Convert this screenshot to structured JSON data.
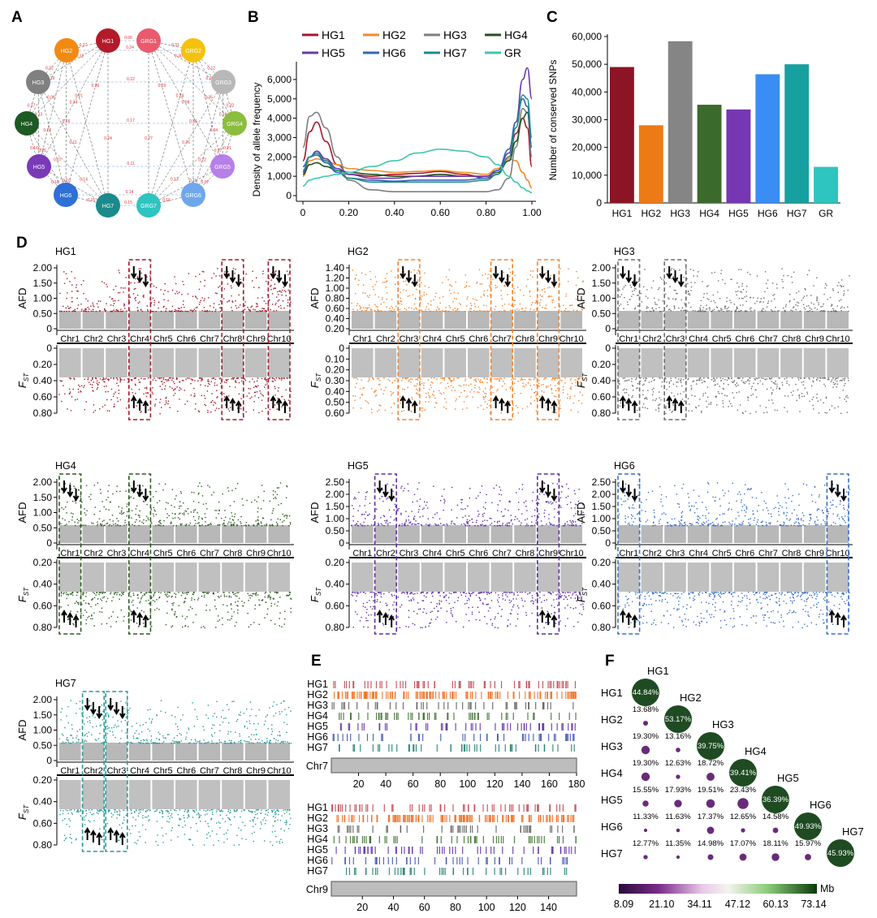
{
  "panel_labels": [
    "A",
    "B",
    "C",
    "D",
    "E",
    "F"
  ],
  "panelA": {
    "nodes": [
      {
        "id": "HG1",
        "color": "#b31b2a"
      },
      {
        "id": "HG2",
        "color": "#f28a12"
      },
      {
        "id": "HG3",
        "color": "#808080"
      },
      {
        "id": "HG4",
        "color": "#1e5a23"
      },
      {
        "id": "HG5",
        "color": "#7a3ab8"
      },
      {
        "id": "HG6",
        "color": "#2f6fd6"
      },
      {
        "id": "HG7",
        "color": "#1b8a8a"
      },
      {
        "id": "GRG1",
        "color": "#ea5a6c"
      },
      {
        "id": "GRG2",
        "color": "#f4c20d"
      },
      {
        "id": "GRG3",
        "color": "#b8b8b8"
      },
      {
        "id": "GRG4",
        "color": "#8cbd3f"
      },
      {
        "id": "GRG5",
        "color": "#b77fe8"
      },
      {
        "id": "GRG6",
        "color": "#6fa7ec"
      },
      {
        "id": "GRG7",
        "color": "#2ec4c0"
      }
    ],
    "edge_labels": [
      "0.27",
      "0.12",
      "0.06",
      "0.34",
      "0.36",
      "0.24",
      "0.32",
      "0.19",
      "0.22",
      "0.26",
      "0.21",
      "0.17",
      "0.13",
      "0.07",
      "0.11",
      "0.16",
      "0.25",
      "0.14",
      "0.18",
      "0.10",
      "0.15",
      "0.31",
      "0.30",
      "0.35",
      "0.08",
      "0.20"
    ]
  },
  "chart_data": [
    {
      "id": "B",
      "type": "line",
      "ylabel": "Density of allele frequency",
      "xlabel": "",
      "xlim": [
        0,
        1
      ],
      "ylim": [
        0,
        6500
      ],
      "xticks": [
        "0",
        "0.20",
        "0.40",
        "0.60",
        "0.80",
        "1.00"
      ],
      "yticks": [
        "0",
        "1,000",
        "2,000",
        "3,000",
        "4,000",
        "5,000",
        "6,000"
      ],
      "legend": [
        {
          "name": "HG1",
          "color": "#a5192a"
        },
        {
          "name": "HG2",
          "color": "#f28a2e"
        },
        {
          "name": "HG3",
          "color": "#7f7f7f"
        },
        {
          "name": "HG4",
          "color": "#244f23"
        },
        {
          "name": "HG5",
          "color": "#6a3aa8"
        },
        {
          "name": "HG6",
          "color": "#3565b4"
        },
        {
          "name": "HG7",
          "color": "#1d8c8a"
        },
        {
          "name": "GR",
          "color": "#3fc6b0"
        }
      ],
      "x": [
        0.0,
        0.03,
        0.06,
        0.1,
        0.15,
        0.2,
        0.3,
        0.4,
        0.5,
        0.6,
        0.7,
        0.8,
        0.85,
        0.9,
        0.93,
        0.96,
        0.98,
        1.0
      ],
      "series": [
        {
          "name": "HG1",
          "values": [
            1800,
            3300,
            3800,
            2800,
            1600,
            1100,
            1000,
            1100,
            1150,
            1250,
            1100,
            900,
            1100,
            2000,
            3200,
            4000,
            3500,
            1500
          ]
        },
        {
          "name": "HG2",
          "values": [
            1000,
            1800,
            1900,
            1800,
            1600,
            1400,
            1300,
            1200,
            1250,
            1300,
            1200,
            1100,
            1400,
            1900,
            1800,
            1200,
            800,
            400
          ]
        },
        {
          "name": "HG3",
          "values": [
            2500,
            4100,
            4300,
            3500,
            2000,
            800,
            300,
            200,
            200,
            200,
            200,
            200,
            300,
            900,
            2500,
            4500,
            4300,
            2000
          ]
        },
        {
          "name": "HG4",
          "values": [
            1100,
            1600,
            1700,
            1500,
            1300,
            1200,
            1100,
            1000,
            1000,
            1100,
            1000,
            1000,
            1200,
            1800,
            2800,
            4000,
            4300,
            2500
          ]
        },
        {
          "name": "HG5",
          "values": [
            1200,
            2000,
            2300,
            1900,
            1400,
            1100,
            900,
            900,
            1000,
            1000,
            1000,
            1000,
            1300,
            2200,
            3800,
            6000,
            6600,
            5000
          ]
        },
        {
          "name": "HG6",
          "values": [
            1500,
            2000,
            2100,
            1700,
            1200,
            900,
            800,
            750,
            800,
            800,
            800,
            900,
            1300,
            2400,
            3800,
            5000,
            4600,
            2500
          ]
        },
        {
          "name": "HG7",
          "values": [
            1300,
            2000,
            2200,
            1800,
            1300,
            900,
            700,
            700,
            700,
            700,
            700,
            800,
            1100,
            2000,
            3500,
            5200,
            5000,
            3000
          ]
        },
        {
          "name": "GR",
          "values": [
            500,
            800,
            900,
            1000,
            1100,
            1200,
            1500,
            1800,
            2200,
            2400,
            2300,
            2000,
            1600,
            1000,
            700,
            400,
            250,
            150
          ]
        }
      ]
    },
    {
      "id": "C",
      "type": "bar",
      "ylabel": "Number of conserved SNPs",
      "categories": [
        "HG1",
        "HG2",
        "HG3",
        "HG4",
        "HG5",
        "HG6",
        "HG7",
        "GR"
      ],
      "values": [
        49000,
        28000,
        58300,
        35400,
        33700,
        46400,
        50000,
        13000
      ],
      "colors": [
        "#8b1525",
        "#ec7b16",
        "#858585",
        "#3a6b2c",
        "#7638b2",
        "#3a8df2",
        "#17a0a0",
        "#2ec4c0"
      ],
      "ylim": [
        0,
        60000
      ],
      "yticks": [
        "0",
        "10,000",
        "20,000",
        "30,000",
        "40,000",
        "50,000",
        "60,000"
      ]
    }
  ],
  "panelD": {
    "afd_label": "AFD",
    "fst_label": "F",
    "fst_sub": "ST",
    "chromosomes": [
      "Chr1",
      "Chr2",
      "Chr3",
      "Chr4",
      "Chr5",
      "Chr6",
      "Chr7",
      "Chr8",
      "Chr9",
      "Chr10"
    ],
    "plots": [
      {
        "title": "HG1",
        "color": "#a41a28",
        "afd_ticks": [
          "0",
          "0.50",
          "1.00",
          "1.50",
          "2.00"
        ],
        "fst_ticks": [
          "0",
          "0.20",
          "0.40",
          "0.60",
          "0.80"
        ],
        "boxes": [
          4,
          8,
          10
        ]
      },
      {
        "title": "HG2",
        "color": "#f5822a",
        "afd_ticks": [
          "0.20",
          "0.40",
          "0.60",
          "0.80",
          "1.00",
          "1.20",
          "1.40"
        ],
        "fst_ticks": [
          "0",
          "0.10",
          "0.20",
          "0.30",
          "0.40",
          "0.50",
          "0.60"
        ],
        "boxes": [
          3,
          7,
          9
        ]
      },
      {
        "title": "HG3",
        "color": "#6e6e6e",
        "afd_ticks": [
          "0",
          "0.50",
          "1.00",
          "1.50",
          "2.00"
        ],
        "fst_ticks": [
          "0",
          "0.20",
          "0.40",
          "0.60",
          "0.80"
        ],
        "boxes": [
          1,
          3
        ]
      },
      {
        "title": "HG4",
        "color": "#2d5a22",
        "afd_ticks": [
          "0",
          "0.50",
          "1.00",
          "1.50",
          "2.00"
        ],
        "fst_ticks": [
          "0.20",
          "0.40",
          "0.60",
          "0.80"
        ],
        "boxes": [
          1,
          4
        ]
      },
      {
        "title": "HG5",
        "color": "#5b2ca6",
        "afd_ticks": [
          "0",
          "0.50",
          "1.00",
          "1.50",
          "2.00",
          "2.50"
        ],
        "fst_ticks": [
          "0.20",
          "0.40",
          "0.60",
          "0.80"
        ],
        "boxes": [
          2,
          9
        ]
      },
      {
        "title": "HG6",
        "color": "#3a6dc8",
        "afd_ticks": [
          "0",
          "0.50",
          "1.00",
          "1.50",
          "2.00",
          "2.50"
        ],
        "fst_ticks": [
          "0.20",
          "0.40",
          "0.60",
          "0.80"
        ],
        "boxes": [
          1,
          10
        ]
      },
      {
        "title": "HG7",
        "color": "#2a9a96",
        "afd_ticks": [
          "0",
          "0.50",
          "1.00",
          "1.50",
          "2.00"
        ],
        "fst_ticks": [
          "0.20",
          "0.40",
          "0.60",
          "0.80"
        ],
        "boxes": [
          2,
          3
        ]
      }
    ]
  },
  "panelE": {
    "rows": [
      "HG1",
      "HG2",
      "HG3",
      "HG4",
      "HG5",
      "HG6",
      "HG7"
    ],
    "row_colors": [
      "#c0404a",
      "#f26a1b",
      "#5a5a5a",
      "#3a6b2c",
      "#5b2ca6",
      "#3a4fb0",
      "#1d7a6a"
    ],
    "chr7": {
      "label": "Chr7",
      "ticks": [
        "20",
        "40",
        "60",
        "80",
        "100",
        "120",
        "140",
        "160",
        "180"
      ]
    },
    "chr9": {
      "label": "Chr9",
      "ticks": [
        "20",
        "40",
        "60",
        "80",
        "100",
        "120",
        "140"
      ]
    }
  },
  "panelF": {
    "groups": [
      "HG1",
      "HG2",
      "HG3",
      "HG4",
      "HG5",
      "HG6",
      "HG7"
    ],
    "diagonal": [
      "44.84%",
      "53.17%",
      "39.75%",
      "39.41%",
      "36.39%",
      "49.93%",
      "45.93%"
    ],
    "lower": [
      [
        "13.68%"
      ],
      [
        "19.30%",
        "13.16%"
      ],
      [
        "19.30%",
        "12.63%",
        "18.72%"
      ],
      [
        "15.55%",
        "17.93%",
        "19.51%",
        "23.43%"
      ],
      [
        "11.33%",
        "11.63%",
        "17.37%",
        "12.65%",
        "14.58%"
      ],
      [
        "12.77%",
        "11.35%",
        "14.98%",
        "17.07%",
        "18.11%",
        "15.97%"
      ]
    ],
    "colorbar_unit": "Mb",
    "colorbar_ticks": [
      "8.09",
      "21.10",
      "34.11",
      "47.12",
      "60.13",
      "73.14"
    ]
  }
}
